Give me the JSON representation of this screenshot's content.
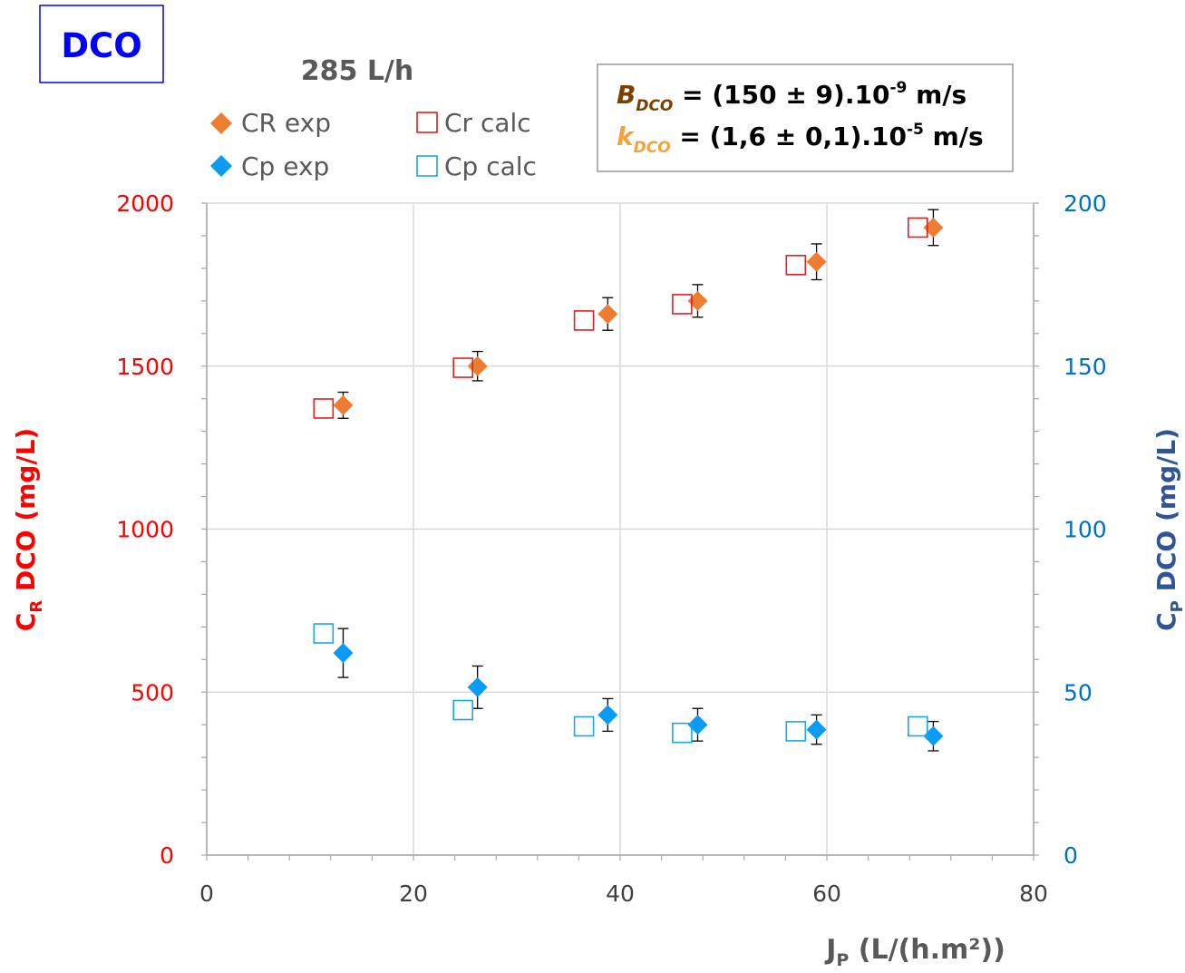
{
  "chart_data": {
    "type": "scatter",
    "badge": "DCO",
    "title": "285 L/h",
    "annotation": {
      "line1": {
        "sym": "B",
        "sub": "DCO",
        "text": " = (150 ± 9).10",
        "sup": "-9",
        "unit": " m/s"
      },
      "line2": {
        "sym": "k",
        "sub": "DCO",
        "text": " = (1,6 ± 0,1).10",
        "sup": "-5",
        "unit": " m/s"
      }
    },
    "xlabel": {
      "main": "J",
      "sub": "P",
      "rest": " (L/(h.m²))"
    },
    "ylabel_left": {
      "main": "C",
      "sub": "R",
      "rest": " DCO (mg/L)"
    },
    "ylabel_right": {
      "main": "C",
      "sub": "P",
      "rest": " DCO (mg/L)"
    },
    "xlim": [
      0,
      80
    ],
    "ylim_left": [
      0,
      2000
    ],
    "ylim_right": [
      0,
      200
    ],
    "xticks": [
      "0",
      "20",
      "40",
      "60",
      "80"
    ],
    "yticks_left": [
      "0",
      "500",
      "1000",
      "1500",
      "2000"
    ],
    "yticks_right": [
      "0",
      "50",
      "100",
      "150",
      "200"
    ],
    "grid": true,
    "legend_position": "top-left",
    "colors": {
      "badge": "#0000ff",
      "left_axis": "#ff0000",
      "right_axis": "#0070c0",
      "right_title": "#2f5597",
      "cr_exp": "#ed7d31",
      "cr_calc": "#e02020",
      "cp_exp": "#0a9bf5",
      "cp_calc": "#1aa7ec",
      "annot_B": "#7b3f00",
      "annot_k": "#f4a23c",
      "title": "#595959"
    },
    "series": [
      {
        "name": "CR exp",
        "axis": "left",
        "marker": "diamond-filled",
        "x": [
          13.2,
          26.2,
          38.8,
          47.5,
          59.0,
          70.3
        ],
        "y": [
          1380,
          1500,
          1660,
          1700,
          1820,
          1925
        ],
        "yerr": [
          40,
          45,
          50,
          50,
          55,
          55
        ]
      },
      {
        "name": "Cr calc",
        "axis": "left",
        "marker": "square-open",
        "x": [
          11.3,
          24.8,
          36.5,
          46.0,
          57.0,
          68.8
        ],
        "y": [
          1370,
          1495,
          1640,
          1690,
          1810,
          1925
        ]
      },
      {
        "name": "Cp exp",
        "axis": "right",
        "marker": "diamond-filled",
        "x": [
          13.2,
          26.2,
          38.8,
          47.5,
          59.0,
          70.3
        ],
        "y": [
          62,
          51.5,
          43,
          40,
          38.5,
          36.5
        ],
        "yerr": [
          7.5,
          6.5,
          5,
          5,
          4.5,
          4.5
        ]
      },
      {
        "name": "Cp calc",
        "axis": "right",
        "marker": "square-open",
        "x": [
          11.3,
          24.8,
          36.5,
          46.0,
          57.0,
          68.8
        ],
        "y": [
          68,
          44.5,
          39.5,
          37.5,
          38,
          39.5
        ]
      }
    ]
  }
}
